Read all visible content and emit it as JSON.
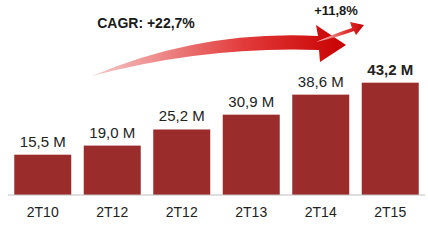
{
  "chart_data": {
    "type": "bar",
    "categories": [
      "2T10",
      "2T12",
      "2T12",
      "2T13",
      "2T14",
      "2T15"
    ],
    "values": [
      15.5,
      19.0,
      25.2,
      30.9,
      38.6,
      43.2
    ],
    "value_labels": [
      "15,5 M",
      "19,0 M",
      "25,2 M",
      "30,9 M",
      "38,6 M",
      "43,2 M"
    ],
    "color": "#9b2c2c",
    "ylim": [
      0,
      50
    ],
    "data_labels": true,
    "tick_labels": "x",
    "annotations": [
      "CAGR: +22,7%",
      "+11,8%"
    ]
  }
}
